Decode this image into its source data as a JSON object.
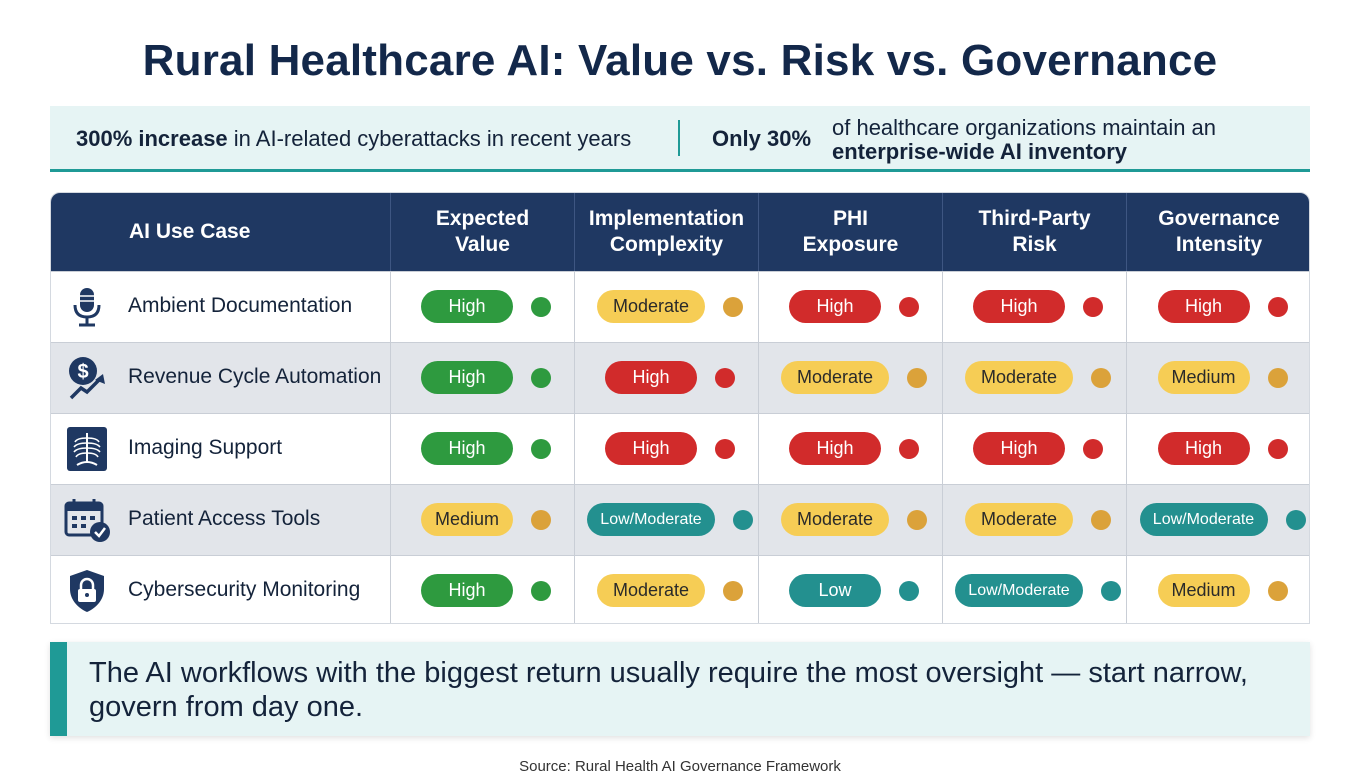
{
  "title": "Rural Healthcare AI: Value vs. Risk vs. Governance",
  "stats": {
    "stat1_bold": "300% increase",
    "stat1_rest": " in AI-related cyberattacks in recent years",
    "stat2_num": "Only 30%",
    "stat2_text": "of healthcare organizations maintain an",
    "stat2_bold": "enterprise-wide AI inventory"
  },
  "colors": {
    "high": "#2e9a3f",
    "risk_high": "#d12b2b",
    "moderate": "#f6cd55",
    "low": "#23908f",
    "header": "#1f3862",
    "accent": "#1f9a96"
  },
  "table": {
    "headers": [
      "AI Use Case",
      "Expected\nValue",
      "Implementation\nComplexity",
      "PHI\nExposure",
      "Third-Party\nRisk",
      "Governance\nIntensity"
    ],
    "rows": [
      {
        "icon": "microphone-icon",
        "label": "Ambient Documentation",
        "cells": [
          {
            "text": "High",
            "tone": "green"
          },
          {
            "text": "Moderate",
            "tone": "yellow"
          },
          {
            "text": "High",
            "tone": "red"
          },
          {
            "text": "High",
            "tone": "red"
          },
          {
            "text": "High",
            "tone": "red"
          }
        ]
      },
      {
        "icon": "revenue-growth-icon",
        "label": "Revenue Cycle Automation",
        "cells": [
          {
            "text": "High",
            "tone": "green"
          },
          {
            "text": "High",
            "tone": "red"
          },
          {
            "text": "Moderate",
            "tone": "yellow"
          },
          {
            "text": "Moderate",
            "tone": "yellow"
          },
          {
            "text": "Medium",
            "tone": "yellow"
          }
        ]
      },
      {
        "icon": "xray-icon",
        "label": "Imaging Support",
        "cells": [
          {
            "text": "High",
            "tone": "green"
          },
          {
            "text": "High",
            "tone": "red"
          },
          {
            "text": "High",
            "tone": "red"
          },
          {
            "text": "High",
            "tone": "red"
          },
          {
            "text": "High",
            "tone": "red"
          }
        ]
      },
      {
        "icon": "calendar-check-icon",
        "label": "Patient Access Tools",
        "cells": [
          {
            "text": "Medium",
            "tone": "yellow"
          },
          {
            "text": "Low/Moderate",
            "tone": "teal"
          },
          {
            "text": "Moderate",
            "tone": "yellow"
          },
          {
            "text": "Moderate",
            "tone": "yellow"
          },
          {
            "text": "Low/Moderate",
            "tone": "teal"
          }
        ]
      },
      {
        "icon": "shield-lock-icon",
        "label": "Cybersecurity Monitoring",
        "cells": [
          {
            "text": "High",
            "tone": "green"
          },
          {
            "text": "Moderate",
            "tone": "yellow"
          },
          {
            "text": "Low",
            "tone": "teal"
          },
          {
            "text": "Low/Moderate",
            "tone": "teal"
          },
          {
            "text": "Medium",
            "tone": "yellow"
          }
        ]
      }
    ]
  },
  "callout": "The AI workflows with the biggest return usually require the most oversight — start narrow, govern from day one.",
  "source": "Source: Rural Health AI Governance Framework"
}
